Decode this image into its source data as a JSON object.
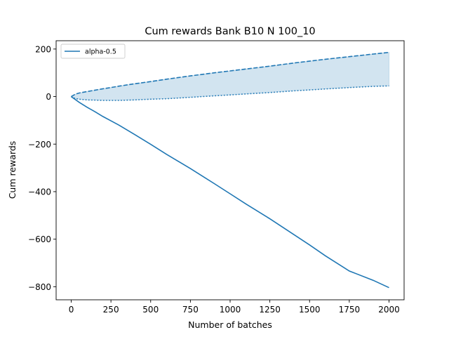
{
  "chart_data": {
    "type": "line",
    "title": "Cum rewards Bank B10 N 100_10",
    "xlabel": "Number of batches",
    "ylabel": "Cum rewards",
    "xlim": [
      -95,
      2095
    ],
    "ylim": [
      -855,
      235
    ],
    "xticks": [
      0,
      250,
      500,
      750,
      1000,
      1250,
      1500,
      1750,
      2000
    ],
    "xtick_labels": [
      "0",
      "250",
      "500",
      "750",
      "1000",
      "1250",
      "1500",
      "1750",
      "2000"
    ],
    "yticks": [
      200,
      0,
      -200,
      -400,
      -600,
      -800
    ],
    "ytick_labels": [
      "200",
      "0",
      "−200",
      "−400",
      "−600",
      "−800"
    ],
    "grid": false,
    "legend": {
      "placement": "top-left",
      "entries": [
        "alpha-0.5"
      ]
    },
    "colors": {
      "series": "#1f77b4",
      "band": "#1f77b4"
    },
    "series": [
      {
        "name": "alpha-0.5",
        "style": "solid",
        "x": [
          0,
          50,
          100,
          150,
          200,
          250,
          300,
          400,
          500,
          600,
          750,
          900,
          1000,
          1100,
          1250,
          1400,
          1500,
          1600,
          1750,
          1900,
          2000
        ],
        "y": [
          0,
          -24,
          -45,
          -64,
          -84,
          -102,
          -120,
          -160,
          -201,
          -243,
          -303,
          -366,
          -409,
          -452,
          -514,
          -580,
          -624,
          -670,
          -734,
          -773,
          -804
        ]
      }
    ],
    "band": {
      "x": [
        0,
        25,
        50,
        100,
        150,
        200,
        250,
        300,
        400,
        500,
        600,
        750,
        900,
        1000,
        1100,
        1250,
        1400,
        1500,
        1600,
        1750,
        1900,
        2000
      ],
      "upper": [
        0,
        10,
        15,
        21,
        27,
        33,
        38,
        44,
        54,
        63,
        73,
        87,
        100,
        108,
        116,
        128,
        141,
        149,
        157,
        168,
        179,
        186
      ],
      "lower": [
        0,
        -8,
        -11,
        -14,
        -15,
        -16,
        -16,
        -16,
        -14,
        -11,
        -9,
        -3,
        3,
        7,
        11,
        17,
        24,
        28,
        32,
        38,
        43,
        45
      ]
    }
  }
}
